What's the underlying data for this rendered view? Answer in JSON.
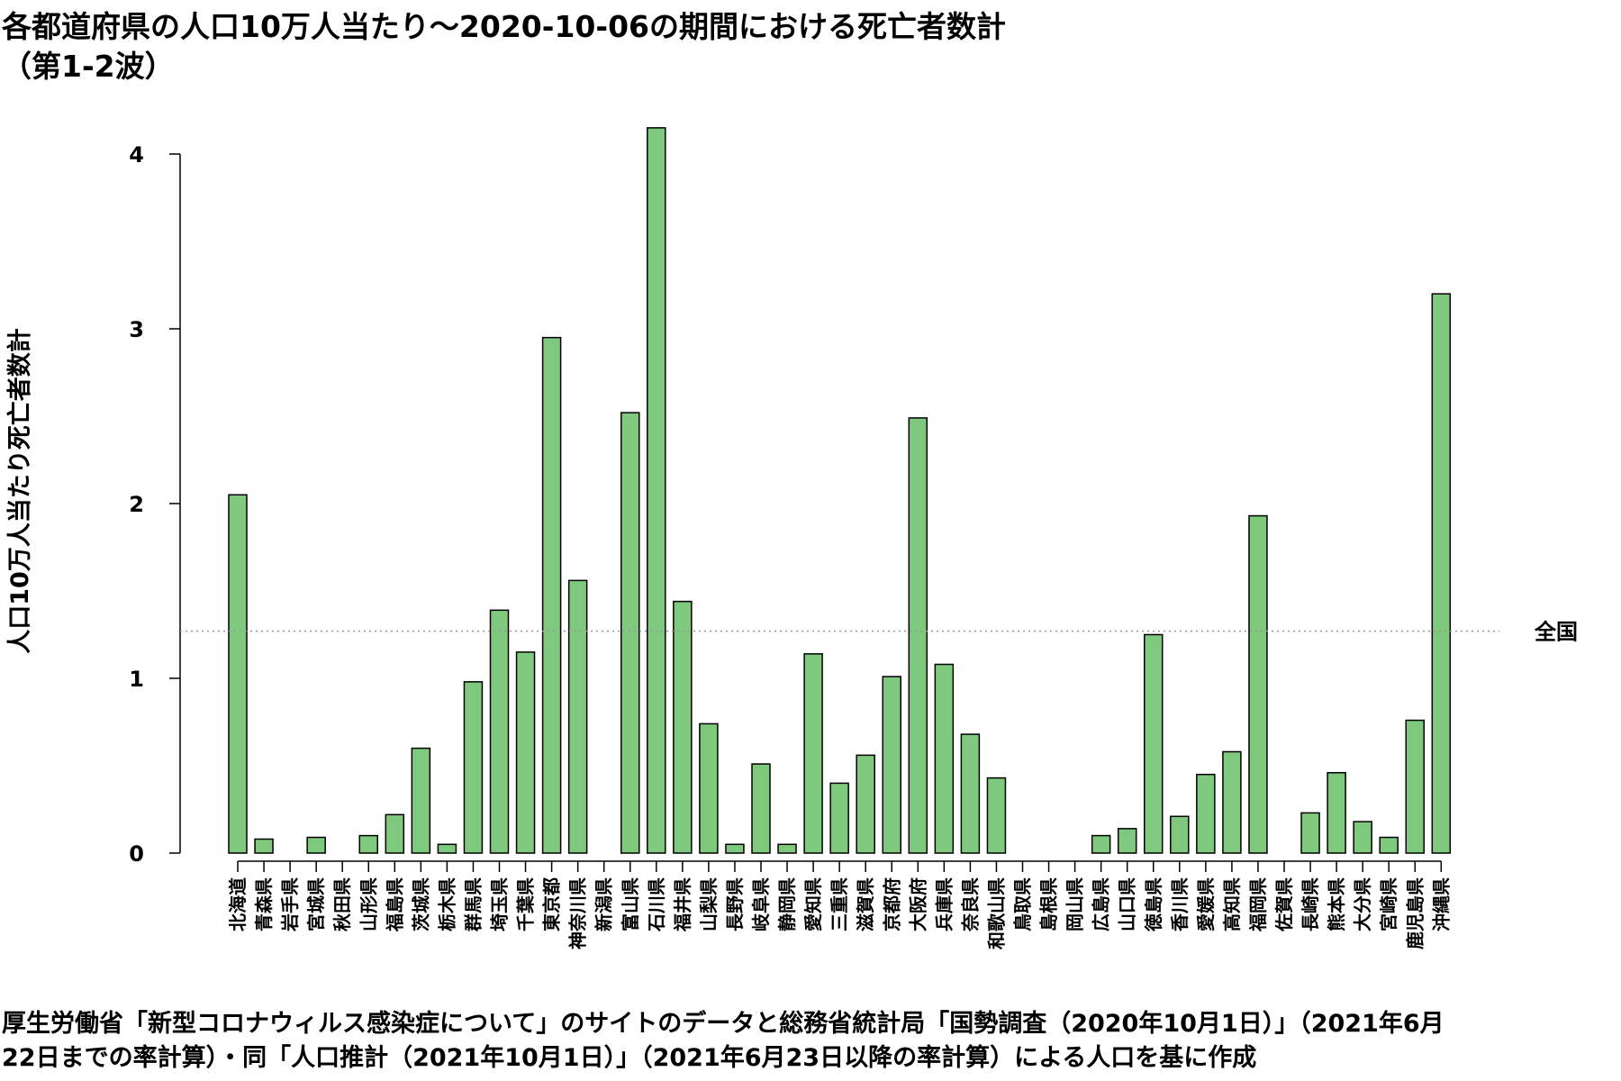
{
  "title": {
    "line1": "各都道府県の人口10万人当たり～2020-10-06の期間における死亡者数計",
    "line2": "（第1-2波）"
  },
  "footer": {
    "line1": "厚生労働省「新型コロナウィルス感染症について」のサイトのデータと総務省統計局「国勢調査（2020年10月1日）」（2021年6月",
    "line2": "22日までの率計算）・同「人口推計（2021年10月1日）」（2021年6月23日以降の率計算）による人口を基に作成"
  },
  "colors": {
    "bar": "#7fc97f",
    "bar_stroke": "#000000",
    "reference_line": "#999999"
  },
  "chart_data": {
    "type": "bar",
    "title": "各都道府県の人口10万人当たり～2020-10-06の期間における死亡者数計（第1-2波）",
    "xlabel": "",
    "ylabel": "人口10万人当たり死亡者数計",
    "ylim": [
      0,
      4.2
    ],
    "yticks": [
      0,
      1,
      2,
      3,
      4
    ],
    "categories": [
      "北海道",
      "青森県",
      "岩手県",
      "宮城県",
      "秋田県",
      "山形県",
      "福島県",
      "茨城県",
      "栃木県",
      "群馬県",
      "埼玉県",
      "千葉県",
      "東京都",
      "神奈川県",
      "新潟県",
      "富山県",
      "石川県",
      "福井県",
      "山梨県",
      "長野県",
      "岐阜県",
      "静岡県",
      "愛知県",
      "三重県",
      "滋賀県",
      "京都府",
      "大阪府",
      "兵庫県",
      "奈良県",
      "和歌山県",
      "鳥取県",
      "島根県",
      "岡山県",
      "広島県",
      "山口県",
      "徳島県",
      "香川県",
      "愛媛県",
      "高知県",
      "福岡県",
      "佐賀県",
      "長崎県",
      "熊本県",
      "大分県",
      "宮崎県",
      "鹿児島県",
      "沖縄県"
    ],
    "values": [
      2.05,
      0.08,
      0.0,
      0.09,
      0.0,
      0.1,
      0.22,
      0.6,
      0.05,
      0.98,
      1.39,
      1.15,
      2.95,
      1.56,
      0.0,
      2.52,
      4.15,
      1.44,
      0.74,
      0.05,
      0.51,
      0.05,
      1.14,
      0.4,
      0.56,
      1.01,
      2.49,
      1.08,
      0.68,
      0.43,
      0.0,
      0.0,
      0.0,
      0.1,
      0.14,
      1.25,
      0.21,
      0.45,
      0.58,
      1.93,
      0.0,
      0.23,
      0.46,
      0.18,
      0.09,
      0.76,
      3.2
    ],
    "reference_line": {
      "label": "全国",
      "value": 1.27
    },
    "grid": false,
    "legend": "none"
  }
}
